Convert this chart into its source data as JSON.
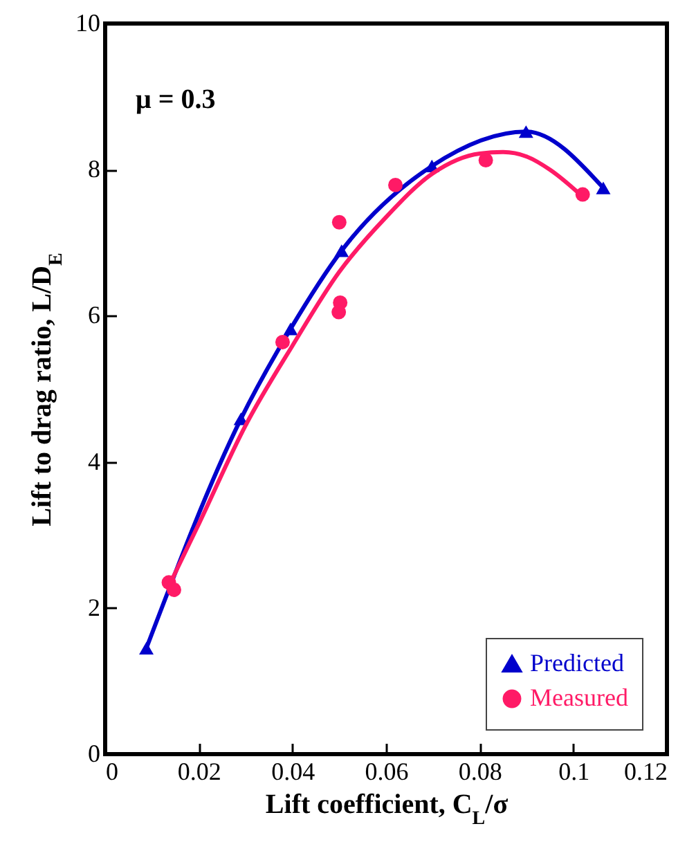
{
  "chart_data": {
    "type": "line",
    "xlabel": "Lift coefficient, C$_{L}$/σ",
    "ylabel": "Lift to drag ratio, L/D$_{E}$",
    "annotations": [
      "μ = 0.3"
    ],
    "xlim": [
      0,
      0.12
    ],
    "xticks": [
      0,
      0.02,
      0.04,
      0.06,
      0.08,
      {
        "value": 0.1,
        "label": "0.1"
      },
      0.12
    ],
    "ylim": [
      0,
      10
    ],
    "yticks": [
      0,
      2,
      4,
      6,
      8,
      10
    ],
    "grid": false,
    "legend": "bottom right",
    "series": [
      {
        "name": "Predicted",
        "type": "line",
        "marker": "triangle",
        "color": "#0000cc",
        "x": [
          0.0088,
          0.029,
          0.0396,
          0.0505,
          0.0698,
          0.0899,
          0.1064
        ],
        "values": [
          1.45,
          4.59,
          5.82,
          6.89,
          8.05,
          8.52,
          7.75
        ]
      },
      {
        "name": "Measured",
        "type": "scatter",
        "marker": "circle",
        "color": "#ff1a66",
        "x": [
          0.0136,
          0.0147,
          0.0379,
          0.05,
          0.0502,
          0.0499,
          0.062,
          0.0813,
          0.102
        ],
        "values": [
          2.35,
          2.25,
          5.64,
          7.28,
          6.18,
          6.05,
          7.79,
          8.13,
          7.66
        ]
      },
      {
        "type": "line",
        "marker": "none",
        "color": "#ff1a66",
        "x": [
          0.0136,
          0.02,
          0.03,
          0.04,
          0.05,
          0.06,
          0.07,
          0.08,
          0.085,
          0.09,
          0.095,
          0.102
        ],
        "values": [
          2.3,
          3.15,
          4.5,
          5.59,
          6.6,
          7.35,
          7.95,
          8.22,
          8.24,
          8.18,
          8.0,
          7.63
        ]
      }
    ]
  }
}
